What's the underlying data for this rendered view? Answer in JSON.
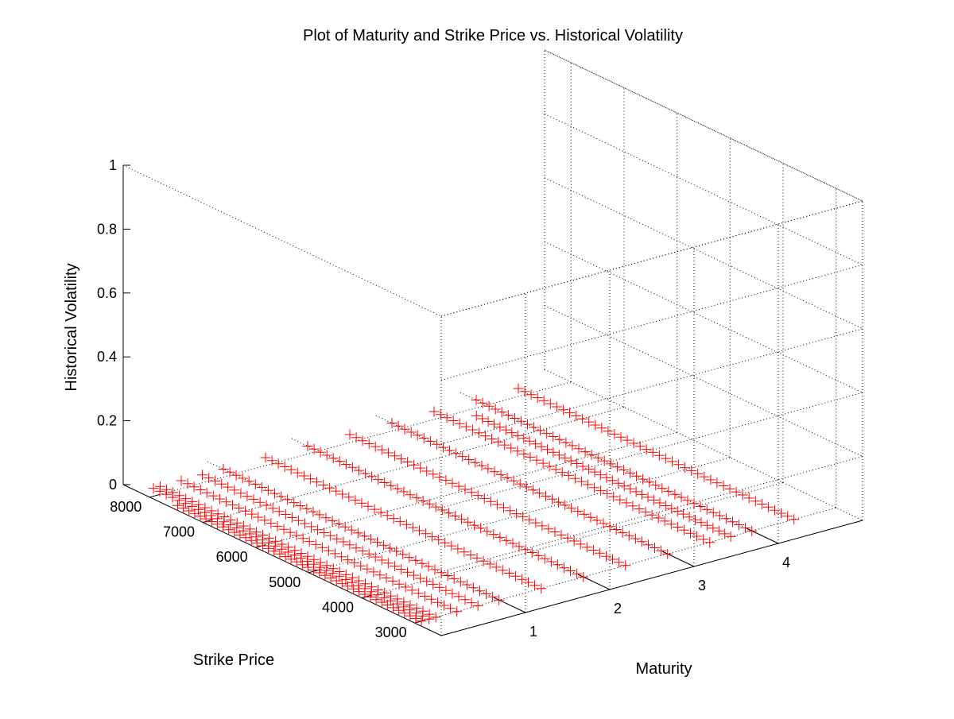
{
  "chart_data": {
    "type": "scatter3d",
    "title": "Plot of Maturity and Strike Price vs. Historical Volatility",
    "xlabel": "Maturity",
    "ylabel": "Strike Price",
    "zlabel": "Historical Volatility",
    "xlim": [
      0,
      5
    ],
    "ylim": [
      2500,
      8500
    ],
    "zlim": [
      0,
      1
    ],
    "xticks": [
      1,
      2,
      3,
      4
    ],
    "xtick_labels": [
      "1",
      "2",
      "3",
      "4"
    ],
    "yticks": [
      3000,
      4000,
      5000,
      6000,
      7000,
      8000
    ],
    "ytick_labels": [
      "3000",
      "4000",
      "5000",
      "6000",
      "7000",
      "8000"
    ],
    "zticks": [
      0,
      0.2,
      0.4,
      0.6,
      0.8,
      1
    ],
    "ztick_labels": [
      "0",
      "0.2",
      "0.4",
      "0.6",
      "0.8",
      "1"
    ],
    "grid": true,
    "marker": "+",
    "marker_color": "#ff0000",
    "series": [
      {
        "maturity": 0.08,
        "strike_min": 3000,
        "strike_max": 7600,
        "volatility": 0.0
      },
      {
        "maturity": 0.17,
        "strike_min": 3000,
        "strike_max": 8200,
        "volatility": 0.0
      },
      {
        "maturity": 0.25,
        "strike_min": 3000,
        "strike_max": 8200,
        "volatility": 0.0
      },
      {
        "maturity": 0.5,
        "strike_min": 3000,
        "strike_max": 8200,
        "volatility": 0.0
      },
      {
        "maturity": 0.75,
        "strike_min": 3000,
        "strike_max": 8200,
        "volatility": 0.0
      },
      {
        "maturity": 1.0,
        "strike_min": 3000,
        "strike_max": 8200,
        "volatility": 0.0
      },
      {
        "maturity": 1.5,
        "strike_min": 3000,
        "strike_max": 8200,
        "volatility": 0.0
      },
      {
        "maturity": 2.0,
        "strike_min": 3000,
        "strike_max": 8200,
        "volatility": 0.0
      },
      {
        "maturity": 2.5,
        "strike_min": 3000,
        "strike_max": 8200,
        "volatility": 0.0
      },
      {
        "maturity": 3.0,
        "strike_min": 3000,
        "strike_max": 8200,
        "volatility": 0.0
      },
      {
        "maturity": 3.5,
        "strike_min": 3000,
        "strike_max": 8200,
        "volatility": 0.0
      },
      {
        "maturity": 3.75,
        "strike_min": 3000,
        "strike_max": 7800,
        "volatility": 0.0
      },
      {
        "maturity": 4.0,
        "strike_min": 3000,
        "strike_max": 8200,
        "volatility": 0.0
      },
      {
        "maturity": 4.5,
        "strike_min": 3000,
        "strike_max": 8200,
        "volatility": 0.0
      }
    ],
    "points_per_series": 44
  }
}
